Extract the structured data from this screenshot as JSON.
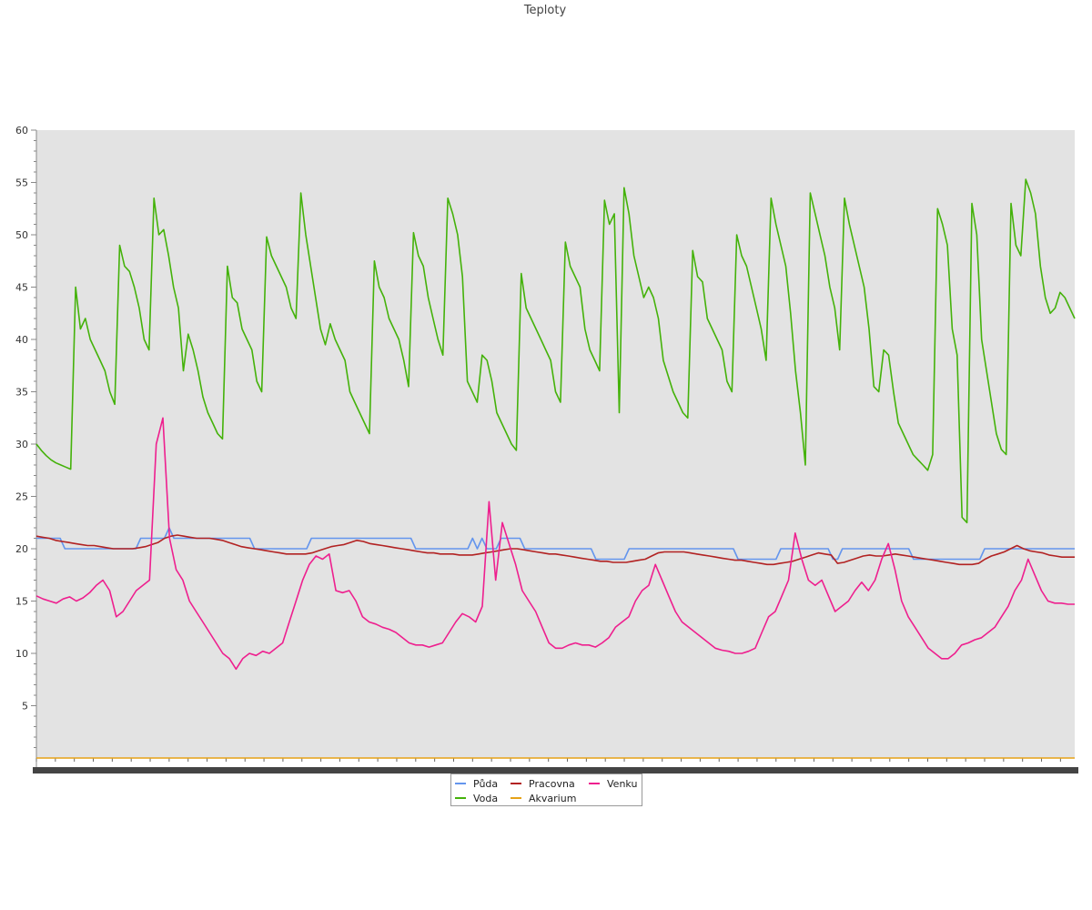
{
  "chart_data": {
    "type": "line",
    "title": "Teploty",
    "xlabel": "",
    "ylabel": "",
    "ylim": [
      0,
      60
    ],
    "yticks": [
      5,
      10,
      15,
      20,
      25,
      30,
      35,
      40,
      45,
      50,
      55,
      60
    ],
    "grid": false,
    "legend_position": "bottom",
    "plot_background": "#e3e3e3",
    "x_count": 220,
    "series": [
      {
        "name": "Půda",
        "color": "#6495ed",
        "values": [
          21,
          21,
          21,
          21,
          21,
          21,
          20,
          20,
          20,
          20,
          20,
          20,
          20,
          20,
          20,
          20,
          20,
          20,
          20,
          20,
          20,
          20,
          21,
          21,
          21,
          21,
          21,
          21,
          22,
          21,
          21,
          21,
          21,
          21,
          21,
          21,
          21,
          21,
          21,
          21,
          21,
          21,
          21,
          21,
          21,
          21,
          20,
          20,
          20,
          20,
          20,
          20,
          20,
          20,
          20,
          20,
          20,
          20,
          21,
          21,
          21,
          21,
          21,
          21,
          21,
          21,
          21,
          21,
          21,
          21,
          21,
          21,
          21,
          21,
          21,
          21,
          21,
          21,
          21,
          21,
          20,
          20,
          20,
          20,
          20,
          20,
          20,
          20,
          20,
          20,
          20,
          20,
          21,
          20,
          21,
          20,
          20,
          20,
          21,
          21,
          21,
          21,
          21,
          20,
          20,
          20,
          20,
          20,
          20,
          20,
          20,
          20,
          20,
          20,
          20,
          20,
          20,
          20,
          19,
          19,
          19,
          19,
          19,
          19,
          19,
          20,
          20,
          20,
          20,
          20,
          20,
          20,
          20,
          20,
          20,
          20,
          20,
          20,
          20,
          20,
          20,
          20,
          20,
          20,
          20,
          20,
          20,
          20,
          19,
          19,
          19,
          19,
          19,
          19,
          19,
          19,
          19,
          20,
          20,
          20,
          20,
          20,
          20,
          20,
          20,
          20,
          20,
          20,
          19,
          19,
          20,
          20,
          20,
          20,
          20,
          20,
          20,
          20,
          20,
          20,
          20,
          20,
          20,
          20,
          20,
          19,
          19,
          19,
          19,
          19,
          19,
          19,
          19,
          19,
          19,
          19,
          19,
          19,
          19,
          19,
          20,
          20,
          20,
          20,
          20,
          20,
          20,
          20,
          20,
          20,
          20,
          20,
          20,
          20,
          20,
          20,
          20,
          20,
          20,
          20
        ]
      },
      {
        "name": "Voda",
        "color": "#44b20a",
        "values": [
          30,
          29.4,
          28.9,
          28.5,
          28.2,
          28.0,
          27.8,
          27.6,
          45.0,
          41.0,
          42.0,
          40.0,
          39.0,
          38.0,
          37.0,
          35.0,
          33.8,
          49.0,
          47.0,
          46.5,
          45.0,
          43.0,
          40.0,
          39.0,
          53.5,
          50.0,
          50.5,
          48.0,
          45.0,
          43.0,
          37.0,
          40.5,
          39.0,
          37.0,
          34.5,
          33.0,
          32.0,
          31.0,
          30.5,
          47.0,
          44.0,
          43.5,
          41.0,
          40.0,
          39.0,
          36.0,
          35.0,
          49.8,
          48.0,
          47.0,
          46.0,
          45.0,
          43.0,
          42.0,
          54.0,
          50.0,
          47.0,
          44.0,
          41.0,
          39.5,
          41.5,
          40.0,
          39.0,
          38.0,
          35.0,
          34.0,
          33.0,
          32.0,
          31.0,
          47.5,
          45.0,
          44.0,
          42.0,
          41.0,
          40.0,
          38.0,
          35.5,
          50.2,
          48.0,
          47.0,
          44.0,
          42.0,
          40.0,
          38.5,
          53.5,
          52.0,
          50.0,
          46.0,
          36.0,
          35.0,
          34.0,
          38.5,
          38.0,
          36.0,
          33.0,
          32.0,
          31.0,
          30.0,
          29.4,
          46.3,
          43.0,
          42.0,
          41.0,
          40.0,
          39.0,
          38.0,
          35.0,
          34.0,
          49.3,
          47.0,
          46.0,
          45.0,
          41.0,
          39.0,
          38.0,
          37.0,
          53.3,
          51.0,
          52.0,
          33.0,
          54.5,
          52.0,
          48.0,
          46.0,
          44.0,
          45.0,
          44.0,
          42.0,
          38.0,
          36.5,
          35.0,
          34.0,
          33.0,
          32.5,
          48.5,
          46.0,
          45.5,
          42.0,
          41.0,
          40.0,
          39.0,
          36.0,
          35.0,
          50.0,
          48.0,
          47.0,
          45.0,
          43.0,
          41.0,
          38.0,
          53.5,
          51.0,
          49.0,
          47.0,
          42.5,
          37.0,
          33.0,
          28.0,
          54.0,
          52.0,
          50.0,
          48.0,
          45.0,
          43.0,
          39.0,
          53.5,
          51.0,
          49.0,
          47.0,
          45.0,
          41.0,
          35.5,
          35.0,
          39.0,
          38.5,
          35.0,
          32.0,
          31.0,
          30.0,
          29.0,
          28.5,
          28.0,
          27.5,
          29.0,
          52.5,
          51.0,
          49.0,
          41.0,
          38.5,
          23.0,
          22.5,
          53.0,
          50.0,
          40.0,
          37.0,
          34.0,
          31.0,
          29.5,
          29.0,
          53.0,
          49.0,
          48.0,
          55.3,
          54.0,
          52.0,
          47.0,
          44.0,
          42.5,
          43.0,
          44.5,
          44.0,
          43.0,
          42.0
        ]
      },
      {
        "name": "Pracovna",
        "color": "#b22222",
        "values": [
          21.2,
          21.1,
          21.0,
          20.8,
          20.7,
          20.6,
          20.5,
          20.4,
          20.3,
          20.3,
          20.2,
          20.1,
          20.0,
          20.0,
          20.0,
          20.0,
          20.1,
          20.2,
          20.4,
          20.6,
          21.0,
          21.2,
          21.3,
          21.2,
          21.1,
          21.0,
          21.0,
          21.0,
          20.9,
          20.8,
          20.6,
          20.4,
          20.2,
          20.1,
          20.0,
          19.9,
          19.8,
          19.7,
          19.6,
          19.5,
          19.5,
          19.5,
          19.5,
          19.6,
          19.8,
          20.0,
          20.2,
          20.3,
          20.4,
          20.6,
          20.8,
          20.7,
          20.5,
          20.4,
          20.3,
          20.2,
          20.1,
          20.0,
          19.9,
          19.8,
          19.7,
          19.6,
          19.6,
          19.5,
          19.5,
          19.5,
          19.4,
          19.4,
          19.4,
          19.5,
          19.6,
          19.7,
          19.8,
          19.9,
          20.0,
          20.0,
          19.9,
          19.8,
          19.7,
          19.6,
          19.5,
          19.5,
          19.4,
          19.3,
          19.2,
          19.1,
          19.0,
          18.9,
          18.8,
          18.8,
          18.7,
          18.7,
          18.7,
          18.8,
          18.9,
          19.0,
          19.3,
          19.6,
          19.7,
          19.7,
          19.7,
          19.7,
          19.6,
          19.5,
          19.4,
          19.3,
          19.2,
          19.1,
          19.0,
          18.9,
          18.9,
          18.8,
          18.7,
          18.6,
          18.5,
          18.5,
          18.6,
          18.7,
          18.8,
          19.0,
          19.2,
          19.4,
          19.6,
          19.5,
          19.4,
          18.6,
          18.7,
          18.9,
          19.1,
          19.3,
          19.4,
          19.3,
          19.3,
          19.4,
          19.5,
          19.4,
          19.3,
          19.2,
          19.1,
          19.0,
          18.9,
          18.8,
          18.7,
          18.6,
          18.5,
          18.5,
          18.5,
          18.6,
          19.0,
          19.3,
          19.5,
          19.7,
          20.0,
          20.3,
          20.0,
          19.8,
          19.7,
          19.6,
          19.4,
          19.3,
          19.2,
          19.2,
          19.2
        ]
      },
      {
        "name": "Akvarium",
        "color": "#e6a217",
        "values": [
          0,
          0,
          0,
          0,
          0,
          0,
          0,
          0,
          0,
          0,
          0,
          0,
          0,
          0,
          0,
          0,
          0,
          0,
          0,
          0,
          0,
          0,
          0,
          0,
          0,
          0,
          0,
          0,
          0,
          0
        ]
      },
      {
        "name": "Venku",
        "color": "#ee1f8e",
        "values": [
          15.5,
          15.2,
          15.0,
          14.8,
          15.2,
          15.4,
          15.0,
          15.3,
          15.8,
          16.5,
          17.0,
          16.0,
          13.5,
          14.0,
          15.0,
          16.0,
          16.5,
          17.0,
          30.0,
          32.5,
          21.0,
          18.0,
          17.0,
          15.0,
          14.0,
          13.0,
          12.0,
          11.0,
          10.0,
          9.5,
          8.5,
          9.5,
          10.0,
          9.8,
          10.2,
          10.0,
          10.5,
          11.0,
          13.0,
          15.0,
          17.0,
          18.5,
          19.3,
          19.0,
          19.5,
          16.0,
          15.8,
          16.0,
          15.0,
          13.5,
          13.0,
          12.8,
          12.5,
          12.3,
          12.0,
          11.5,
          11.0,
          10.8,
          10.8,
          10.6,
          10.8,
          11.0,
          12.0,
          13.0,
          13.8,
          13.5,
          13.0,
          14.5,
          24.5,
          17.0,
          22.5,
          20.5,
          18.5,
          16.0,
          15.0,
          14.0,
          12.5,
          11.0,
          10.5,
          10.5,
          10.8,
          11.0,
          10.8,
          10.8,
          10.6,
          11.0,
          11.5,
          12.5,
          13.0,
          13.5,
          15.0,
          16.0,
          16.5,
          18.5,
          17.0,
          15.5,
          14.0,
          13.0,
          12.5,
          12.0,
          11.5,
          11.0,
          10.5,
          10.3,
          10.2,
          10.0,
          10.0,
          10.2,
          10.5,
          12.0,
          13.5,
          14.0,
          15.5,
          17.0,
          21.5,
          19.0,
          17.0,
          16.5,
          17.0,
          15.5,
          14.0,
          14.5,
          15.0,
          16.0,
          16.8,
          16.0,
          17.0,
          19.0,
          20.5,
          18.0,
          15.0,
          13.5,
          12.5,
          11.5,
          10.5,
          10.0,
          9.5,
          9.5,
          10.0,
          10.8,
          11.0,
          11.3,
          11.5,
          12.0,
          12.5,
          13.5,
          14.5,
          16.0,
          17.0,
          19.0,
          17.5,
          16.0,
          15.0,
          14.8,
          14.8,
          14.7,
          14.7
        ]
      }
    ]
  }
}
